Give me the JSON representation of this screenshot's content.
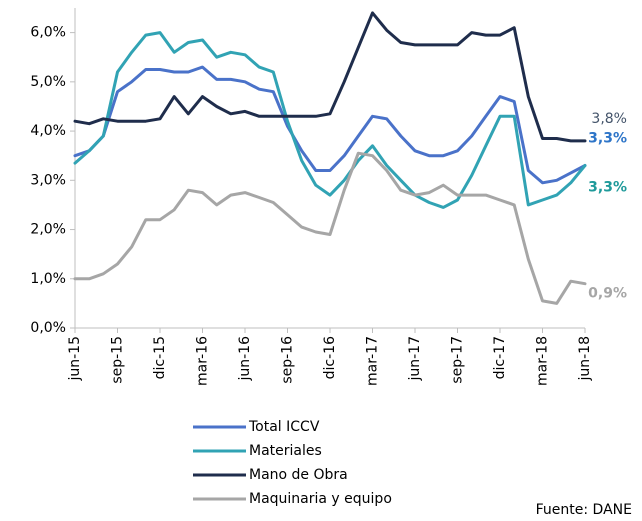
{
  "chart_data": {
    "type": "line",
    "categories": [
      "jun-15",
      null,
      null,
      "sep-15",
      null,
      null,
      "dic-15",
      null,
      null,
      "mar-16",
      null,
      null,
      "jun-16",
      null,
      null,
      "sep-16",
      null,
      null,
      "dic-16",
      null,
      null,
      "mar-17",
      null,
      null,
      "jun-17",
      null,
      null,
      "sep-17",
      null,
      null,
      "dic-17",
      null,
      null,
      "mar-18",
      null,
      null,
      "jun-18"
    ],
    "series": [
      {
        "name": "Total ICCV",
        "color": "#4a72c9",
        "label_color": "#2e75c8",
        "values": [
          3.5,
          3.6,
          3.9,
          4.8,
          5.0,
          5.25,
          5.25,
          5.2,
          5.2,
          5.3,
          5.05,
          5.05,
          5.0,
          4.85,
          4.8,
          4.1,
          3.6,
          3.2,
          3.2,
          3.5,
          3.9,
          4.3,
          4.25,
          3.9,
          3.6,
          3.5,
          3.5,
          3.6,
          3.9,
          4.3,
          4.7,
          4.6,
          3.2,
          2.95,
          3.0,
          3.15,
          3.3
        ],
        "value_labels": [
          null,
          null,
          null,
          null,
          null,
          null,
          null,
          null,
          null,
          null,
          null,
          null,
          null,
          null,
          null,
          null,
          null,
          null,
          null,
          null,
          null,
          null,
          null,
          null,
          null,
          null,
          null,
          null,
          null,
          null,
          null,
          null,
          null,
          null,
          null,
          null,
          "3,3%"
        ]
      },
      {
        "name": "Materiales",
        "color": "#31a3b4",
        "label_color": "#1f9a9a",
        "values": [
          3.35,
          3.6,
          3.9,
          5.2,
          5.6,
          5.95,
          6.0,
          5.6,
          5.8,
          5.85,
          5.5,
          5.6,
          5.55,
          5.3,
          5.2,
          4.2,
          3.4,
          2.9,
          2.7,
          3.0,
          3.4,
          3.7,
          3.3,
          3.0,
          2.7,
          2.55,
          2.45,
          2.6,
          3.1,
          3.7,
          4.3,
          4.3,
          2.5,
          2.6,
          2.7,
          2.95,
          3.3
        ],
        "value_labels": [
          null,
          null,
          null,
          null,
          null,
          null,
          null,
          null,
          null,
          null,
          null,
          null,
          null,
          null,
          null,
          null,
          null,
          null,
          null,
          null,
          null,
          null,
          null,
          null,
          null,
          null,
          null,
          null,
          null,
          null,
          null,
          null,
          null,
          null,
          null,
          null,
          "3,3%"
        ]
      },
      {
        "name": "Mano de Obra",
        "color": "#1f2d4c",
        "label_color": "#44546a",
        "values": [
          4.2,
          4.15,
          4.25,
          4.2,
          4.2,
          4.2,
          4.25,
          4.7,
          4.35,
          4.7,
          4.5,
          4.35,
          4.4,
          4.3,
          4.3,
          4.3,
          4.3,
          4.3,
          4.35,
          5.0,
          5.7,
          6.4,
          6.05,
          5.8,
          5.75,
          5.75,
          5.75,
          5.75,
          6.0,
          5.95,
          5.95,
          6.1,
          4.7,
          3.85,
          3.85,
          3.8,
          3.8
        ],
        "value_labels": [
          null,
          null,
          null,
          null,
          null,
          null,
          null,
          null,
          null,
          null,
          null,
          null,
          null,
          null,
          null,
          null,
          null,
          null,
          null,
          null,
          null,
          null,
          null,
          null,
          null,
          null,
          null,
          null,
          null,
          null,
          null,
          null,
          null,
          null,
          null,
          null,
          "3,8%"
        ]
      },
      {
        "name": "Maquinaria y equipo",
        "color": "#a6a6a6",
        "label_color": "#a6a6a6",
        "values": [
          1.0,
          1.0,
          1.1,
          1.3,
          1.65,
          2.2,
          2.2,
          2.4,
          2.8,
          2.75,
          2.5,
          2.7,
          2.75,
          2.65,
          2.55,
          2.3,
          2.05,
          1.95,
          1.9,
          2.8,
          3.55,
          3.5,
          3.2,
          2.8,
          2.7,
          2.75,
          2.9,
          2.7,
          2.7,
          2.7,
          2.6,
          2.5,
          1.4,
          0.55,
          0.5,
          0.95,
          0.9
        ],
        "value_labels": [
          null,
          null,
          null,
          null,
          null,
          null,
          null,
          null,
          null,
          null,
          null,
          null,
          null,
          null,
          null,
          null,
          null,
          null,
          null,
          null,
          null,
          null,
          null,
          null,
          null,
          null,
          null,
          null,
          null,
          null,
          null,
          null,
          null,
          null,
          null,
          null,
          "0,9%"
        ]
      }
    ],
    "ylim": [
      0,
      6.5
    ],
    "yticks": [
      {
        "value": 0,
        "label": "0,0%"
      },
      {
        "value": 1,
        "label": "1,0%"
      },
      {
        "value": 2,
        "label": "2,0%"
      },
      {
        "value": 3,
        "label": "3,0%"
      },
      {
        "value": 4,
        "label": "4,0%"
      },
      {
        "value": 5,
        "label": "5,0%"
      },
      {
        "value": 6,
        "label": "6,0%"
      }
    ],
    "source": "Fuente: DANE"
  }
}
